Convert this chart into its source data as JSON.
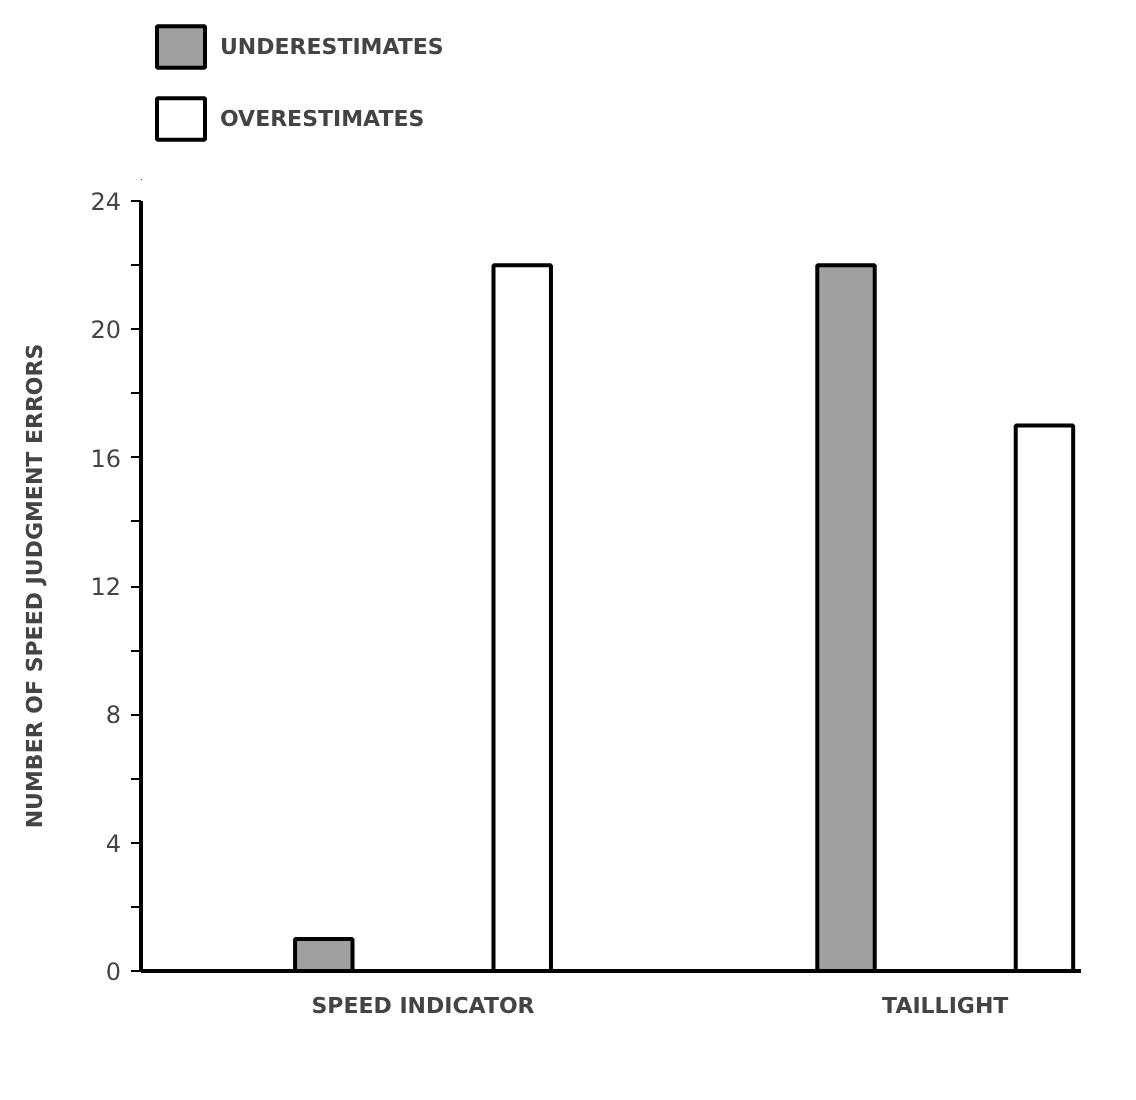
{
  "chart_data": {
    "type": "bar",
    "ylabel": "NUMBER OF SPEED JUDGMENT ERRORS",
    "categories": [
      "SPEED INDICATOR",
      "TAILLIGHT"
    ],
    "series": [
      {
        "name": "UNDERESTIMATES",
        "color": "#a0a0a0",
        "values": [
          1,
          22
        ]
      },
      {
        "name": "OVERESTIMATES",
        "color": "#ffffff",
        "values": [
          22,
          17
        ]
      }
    ],
    "ylim": [
      0,
      24
    ],
    "yticks": [
      0,
      {
        "value": 2,
        "label": null
      },
      4,
      {
        "value": 6,
        "label": null
      },
      8,
      {
        "value": 10,
        "label": null
      },
      12,
      {
        "value": 14,
        "label": null
      },
      16,
      {
        "value": 18,
        "label": null
      },
      20,
      {
        "value": 22,
        "label": null
      },
      24
    ],
    "grid": false,
    "legend": "top left"
  }
}
